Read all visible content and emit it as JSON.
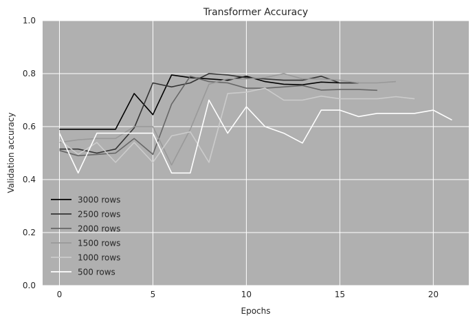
{
  "chart_data": {
    "type": "line",
    "title": "Transformer Accuracy",
    "xlabel": "Epochs",
    "ylabel": "Validation accuracy",
    "xlim": [
      -0.9,
      21.9
    ],
    "ylim": [
      0.0,
      1.0
    ],
    "xticks": [
      0,
      5,
      10,
      15,
      20
    ],
    "yticks": [
      0.0,
      0.2,
      0.4,
      0.6,
      0.8,
      1.0
    ],
    "xtick_labels": [
      "0",
      "5",
      "10",
      "15",
      "20"
    ],
    "ytick_labels": [
      "0.0",
      "0.2",
      "0.4",
      "0.6",
      "0.8",
      "1.0"
    ],
    "grid": true,
    "legend_position": "lower-left",
    "background_color": "#b0b0b0",
    "grid_color": "#ffffff",
    "series": [
      {
        "name": "3000 rows",
        "color": "#000000",
        "x": [
          0,
          1,
          2,
          3,
          4,
          5,
          6,
          7,
          8,
          9,
          10,
          11,
          12,
          13,
          14,
          15,
          16
        ],
        "values": [
          0.59,
          0.59,
          0.59,
          0.59,
          0.725,
          0.645,
          0.795,
          0.785,
          0.78,
          0.775,
          0.79,
          0.77,
          0.76,
          0.758,
          0.768,
          0.765,
          0.765
        ]
      },
      {
        "name": "2500 rows",
        "color": "#333333",
        "x": [
          0,
          1,
          2,
          3,
          4,
          5,
          6,
          7,
          8,
          9,
          10,
          11,
          12,
          13,
          14,
          15,
          16
        ],
        "values": [
          0.515,
          0.515,
          0.5,
          0.515,
          0.595,
          0.765,
          0.75,
          0.765,
          0.8,
          0.795,
          0.785,
          0.78,
          0.775,
          0.775,
          0.79,
          0.765,
          0.765
        ]
      },
      {
        "name": "2000 rows",
        "color": "#666666",
        "x": [
          0,
          1,
          2,
          3,
          4,
          5,
          6,
          7,
          8,
          9,
          10,
          11,
          12,
          13,
          14,
          15,
          16,
          17
        ],
        "values": [
          0.51,
          0.49,
          0.495,
          0.5,
          0.555,
          0.495,
          0.685,
          0.79,
          0.77,
          0.765,
          0.745,
          0.745,
          0.75,
          0.755,
          0.738,
          0.74,
          0.74,
          0.737
        ]
      },
      {
        "name": "1500 rows",
        "color": "#999999",
        "x": [
          0,
          1,
          2,
          3,
          4,
          5,
          6,
          7,
          8,
          9,
          10,
          11,
          12,
          13,
          14,
          15,
          16,
          17,
          18
        ],
        "values": [
          0.54,
          0.55,
          0.555,
          0.555,
          0.6,
          0.6,
          0.455,
          0.59,
          0.76,
          0.78,
          0.78,
          0.785,
          0.8,
          0.78,
          0.78,
          0.775,
          0.765,
          0.765,
          0.77
        ]
      },
      {
        "name": "1000 rows",
        "color": "#cccccc",
        "x": [
          0,
          1,
          2,
          3,
          4,
          5,
          6,
          7,
          8,
          9,
          10,
          11,
          12,
          13,
          14,
          15,
          16,
          17,
          18,
          19
        ],
        "values": [
          0.55,
          0.495,
          0.54,
          0.465,
          0.54,
          0.465,
          0.565,
          0.58,
          0.465,
          0.725,
          0.73,
          0.745,
          0.7,
          0.7,
          0.715,
          0.705,
          0.705,
          0.705,
          0.713,
          0.705
        ]
      },
      {
        "name": "500 rows",
        "color": "#ffffff",
        "x": [
          0,
          1,
          2,
          3,
          4,
          5,
          6,
          7,
          8,
          9,
          10,
          11,
          12,
          13,
          14,
          15,
          16,
          17,
          18,
          19,
          20,
          21
        ],
        "values": [
          0.575,
          0.425,
          0.575,
          0.575,
          0.575,
          0.575,
          0.425,
          0.425,
          0.7,
          0.575,
          0.675,
          0.6,
          0.575,
          0.538,
          0.662,
          0.662,
          0.638,
          0.65,
          0.65,
          0.65,
          0.662,
          0.625
        ]
      }
    ]
  }
}
